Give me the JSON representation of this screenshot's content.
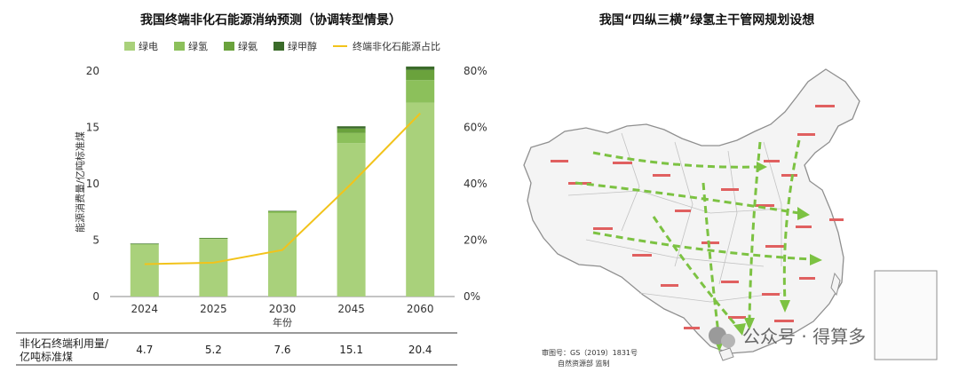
{
  "chart_data": {
    "type": "bar",
    "title": "我国终端非化石能源消纳预测（协调转型情景）",
    "categories": [
      "2024",
      "2025",
      "2030",
      "2045",
      "2060"
    ],
    "xlabel": "年份",
    "ylabel": "能源消费量/亿吨标准煤",
    "ylim": [
      0,
      20
    ],
    "yticks": [
      0,
      5,
      10,
      15,
      20
    ],
    "y2lim": [
      0,
      0.8
    ],
    "y2ticks": [
      "0%",
      "20%",
      "40%",
      "60%",
      "80%"
    ],
    "legend_position": "top",
    "series": [
      {
        "name": "绿电",
        "color": "#a9d17b",
        "values": [
          4.6,
          5.1,
          7.4,
          13.6,
          17.2
        ]
      },
      {
        "name": "绿氢",
        "color": "#8cc05b",
        "values": [
          0.06,
          0.06,
          0.12,
          0.9,
          2.0
        ]
      },
      {
        "name": "绿氨",
        "color": "#6aa23c",
        "values": [
          0.02,
          0.02,
          0.05,
          0.4,
          0.9
        ]
      },
      {
        "name": "绿甲醇",
        "color": "#3b6b2a",
        "values": [
          0.02,
          0.02,
          0.03,
          0.2,
          0.3
        ]
      }
    ],
    "line_series": {
      "name": "终端非化石能源占比",
      "color": "#f2c31b",
      "values": [
        0.115,
        0.12,
        0.165,
        0.4,
        0.65
      ]
    },
    "table": {
      "row_label_line1": "非化石终端利用量/",
      "row_label_line2": "亿吨标准煤",
      "values": [
        "4.7",
        "5.2",
        "7.6",
        "15.1",
        "20.4"
      ]
    }
  },
  "map": {
    "title": "我国“四纵三横”绿氢主干管网规划设想",
    "approval_line1": "审图号：GS（2019）1831号",
    "approval_line2": "自然资源部 监制",
    "colors": {
      "land": "#f3f3f3",
      "border": "#9a9a9a",
      "arrow": "#7cc242",
      "label": "#e05a5a"
    }
  },
  "watermark": {
    "brand": "公众号 · 得算多"
  }
}
